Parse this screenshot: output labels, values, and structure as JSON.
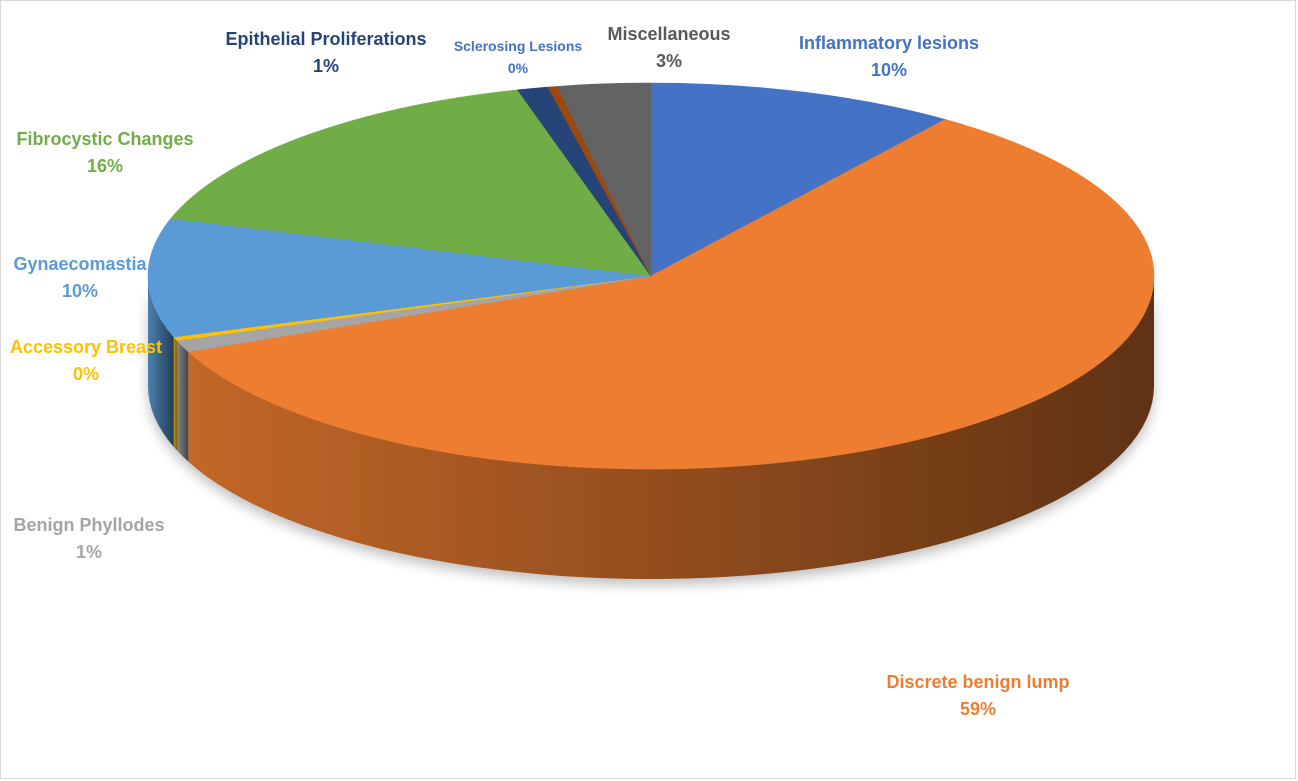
{
  "chart_data": {
    "type": "pie",
    "title": "",
    "style": "3d",
    "slices": [
      {
        "label": "Inflammatory lesions",
        "value": 10,
        "pct_text": "10%",
        "color": "#4472C4",
        "label_color": "#4472C4"
      },
      {
        "label": "Discrete benign lump",
        "value": 59,
        "pct_text": "59%",
        "color": "#ED7D31",
        "label_color": "#ED7D31"
      },
      {
        "label": "Benign Phyllodes",
        "value": 1,
        "pct_text": "1%",
        "color": "#A5A5A5",
        "label_color": "#A5A5A5"
      },
      {
        "label": "Accessory Breast",
        "value": 0.3,
        "pct_text": "0%",
        "color": "#FFC000",
        "label_color": "#FFC000"
      },
      {
        "label": "Gynaecomastia",
        "value": 10,
        "pct_text": "10%",
        "color": "#5B9BD5",
        "label_color": "#5B9BD5"
      },
      {
        "label": "Fibrocystic Changes",
        "value": 16,
        "pct_text": "16%",
        "color": "#70AD47",
        "label_color": "#70AD47"
      },
      {
        "label": "Epithelial Proliferations",
        "value": 1,
        "pct_text": "1%",
        "color": "#264478",
        "label_color": "#264478"
      },
      {
        "label": "Sclerosing Lesions",
        "value": 0.3,
        "pct_text": "0%",
        "color": "#9E480E",
        "label_color": "#4472C4"
      },
      {
        "label": "Miscellaneous",
        "value": 3,
        "pct_text": "3%",
        "color": "#636363",
        "label_color": "#595959"
      }
    ]
  }
}
